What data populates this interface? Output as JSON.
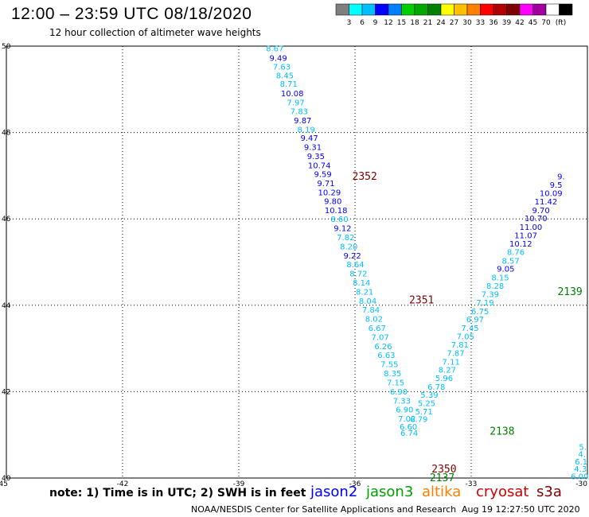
{
  "header": {
    "title": "12:00 – 23:59 UTC 08/18/2020",
    "subtitle": "12 hour collection of altimeter wave heights"
  },
  "legend": {
    "colors": [
      "#7f7f7f",
      "#00ffff",
      "#00bfff",
      "#0000ff",
      "#0080ff",
      "#00d000",
      "#00a800",
      "#008000",
      "#ffff00",
      "#ffc000",
      "#ff8000",
      "#ff0000",
      "#b00000",
      "#800000",
      "#ff00ff",
      "#a000a0",
      "#ffffff",
      "#000000"
    ],
    "labels": [
      "3",
      "6",
      "9",
      "12",
      "15",
      "18",
      "21",
      "24",
      "27",
      "30",
      "33",
      "36",
      "39",
      "42",
      "45",
      "70"
    ],
    "unit": "(ft)"
  },
  "footer": {
    "note": "note: 1) Time is in UTC; 2) SWH is in feet",
    "credit": "NOAA/NESDIS Center for Satellite Applications and Research",
    "timestamp": "Aug 19 12:27:50 UTC 2020",
    "satellites": [
      {
        "name": "jason2",
        "color": "#0000ff"
      },
      {
        "name": "jason3",
        "color": "#00a000"
      },
      {
        "name": "altika",
        "color": "#ff8000"
      },
      {
        "name": "cryosat",
        "color": "#d00000"
      },
      {
        "name": "s3a",
        "color": "#800000"
      }
    ]
  },
  "chart_data": {
    "type": "scatter",
    "xlim": [
      -45,
      -30
    ],
    "ylim": [
      40,
      50
    ],
    "xticks": [
      "-45",
      "-42",
      "-39",
      "-36",
      "-33",
      "-30"
    ],
    "yticks": [
      "40",
      "42",
      "44",
      "46",
      "48",
      "50"
    ],
    "grid": true,
    "tracks": [
      {
        "name": "track-1",
        "points": [
          {
            "x": -38.07,
            "y": 49.95,
            "label": "8.67",
            "color": "#00bfff"
          },
          {
            "x": -37.98,
            "y": 49.73,
            "label": "9.49",
            "color": "#0000ff"
          },
          {
            "x": -37.89,
            "y": 49.53,
            "label": "7.63",
            "color": "#00bfff"
          },
          {
            "x": -37.81,
            "y": 49.33,
            "label": "8.45",
            "color": "#00bfff"
          },
          {
            "x": -37.71,
            "y": 49.13,
            "label": "8.71",
            "color": "#00bfff"
          },
          {
            "x": -37.62,
            "y": 48.91,
            "label": "10.08",
            "color": "#0000ff"
          },
          {
            "x": -37.53,
            "y": 48.7,
            "label": "7.97",
            "color": "#00bfff"
          },
          {
            "x": -37.44,
            "y": 48.5,
            "label": "7.83",
            "color": "#00bfff"
          },
          {
            "x": -37.35,
            "y": 48.29,
            "label": "9.87",
            "color": "#0000ff"
          },
          {
            "x": -37.26,
            "y": 48.08,
            "label": "8.19",
            "color": "#00bfff"
          },
          {
            "x": -37.18,
            "y": 47.88,
            "label": "9.47",
            "color": "#0000ff"
          },
          {
            "x": -37.09,
            "y": 47.67,
            "label": "9.31",
            "color": "#0000ff"
          },
          {
            "x": -37.01,
            "y": 47.46,
            "label": "9.35",
            "color": "#0000ff"
          },
          {
            "x": -36.92,
            "y": 47.25,
            "label": "10.74",
            "color": "#0000ff"
          },
          {
            "x": -36.83,
            "y": 47.04,
            "label": "9.59",
            "color": "#0000ff"
          },
          {
            "x": -36.75,
            "y": 46.83,
            "label": "9.71",
            "color": "#0000ff"
          },
          {
            "x": -36.66,
            "y": 46.62,
            "label": "10.29",
            "color": "#0000ff"
          },
          {
            "x": -36.57,
            "y": 46.42,
            "label": "9.80",
            "color": "#0000ff"
          },
          {
            "x": -36.49,
            "y": 46.21,
            "label": "10.18",
            "color": "#0000ff"
          },
          {
            "x": -36.4,
            "y": 46.0,
            "label": "8.60",
            "color": "#00bfff"
          },
          {
            "x": -36.32,
            "y": 45.79,
            "label": "9.12",
            "color": "#0000ff"
          },
          {
            "x": -36.24,
            "y": 45.58,
            "label": "7.82",
            "color": "#00bfff"
          },
          {
            "x": -36.16,
            "y": 45.37,
            "label": "8.20",
            "color": "#00bfff"
          },
          {
            "x": -36.07,
            "y": 45.16,
            "label": "9.22",
            "color": "#0000ff"
          },
          {
            "x": -35.99,
            "y": 44.95,
            "label": "8.64",
            "color": "#00bfff"
          },
          {
            "x": -35.91,
            "y": 44.74,
            "label": "8.72",
            "color": "#00bfff"
          },
          {
            "x": -35.83,
            "y": 44.53,
            "label": "8.14",
            "color": "#00bfff"
          },
          {
            "x": -35.75,
            "y": 44.32,
            "label": "8.21",
            "color": "#00bfff"
          },
          {
            "x": -35.67,
            "y": 44.11,
            "label": "8.04",
            "color": "#00bfff"
          },
          {
            "x": -35.59,
            "y": 43.9,
            "label": "7.84",
            "color": "#00bfff"
          },
          {
            "x": -35.51,
            "y": 43.69,
            "label": "8.02",
            "color": "#00bfff"
          },
          {
            "x": -35.43,
            "y": 43.48,
            "label": "6.67",
            "color": "#00bfff"
          },
          {
            "x": -35.35,
            "y": 43.27,
            "label": "7.07",
            "color": "#00bfff"
          },
          {
            "x": -35.27,
            "y": 43.06,
            "label": "6.26",
            "color": "#00bfff"
          },
          {
            "x": -35.19,
            "y": 42.85,
            "label": "6.63",
            "color": "#00bfff"
          },
          {
            "x": -35.11,
            "y": 42.64,
            "label": "7.55",
            "color": "#00bfff"
          },
          {
            "x": -35.03,
            "y": 42.43,
            "label": "8.35",
            "color": "#00bfff"
          },
          {
            "x": -34.95,
            "y": 42.22,
            "label": "7.15",
            "color": "#00bfff"
          },
          {
            "x": -34.87,
            "y": 42.01,
            "label": "6.90",
            "color": "#00bfff"
          },
          {
            "x": -34.79,
            "y": 41.8,
            "label": "7.33",
            "color": "#00bfff"
          },
          {
            "x": -34.72,
            "y": 41.59,
            "label": "6.90",
            "color": "#00bfff"
          },
          {
            "x": -34.66,
            "y": 41.38,
            "label": "7.02",
            "color": "#00bfff"
          },
          {
            "x": -34.62,
            "y": 41.2,
            "label": "6.60",
            "color": "#00bfff"
          },
          {
            "x": -34.6,
            "y": 41.05,
            "label": "6.74",
            "color": "#00bfff"
          }
        ]
      },
      {
        "name": "track-2",
        "points": [
          {
            "x": -34.35,
            "y": 41.37,
            "label": "6.79",
            "color": "#00bfff"
          },
          {
            "x": -34.22,
            "y": 41.55,
            "label": "5.71",
            "color": "#00bfff"
          },
          {
            "x": -34.15,
            "y": 41.74,
            "label": "5.25",
            "color": "#00bfff"
          },
          {
            "x": -34.08,
            "y": 41.93,
            "label": "5.39",
            "color": "#00bfff"
          },
          {
            "x": -33.9,
            "y": 42.12,
            "label": "6.78",
            "color": "#00bfff"
          },
          {
            "x": -33.7,
            "y": 42.32,
            "label": "5.96",
            "color": "#00bfff"
          },
          {
            "x": -33.62,
            "y": 42.51,
            "label": "8.27",
            "color": "#00bfff"
          },
          {
            "x": -33.52,
            "y": 42.7,
            "label": "7.11",
            "color": "#00bfff"
          },
          {
            "x": -33.4,
            "y": 42.9,
            "label": "7.87",
            "color": "#00bfff"
          },
          {
            "x": -33.29,
            "y": 43.09,
            "label": "7.81",
            "color": "#00bfff"
          },
          {
            "x": -33.15,
            "y": 43.29,
            "label": "7.05",
            "color": "#00bfff"
          },
          {
            "x": -33.03,
            "y": 43.48,
            "label": "7.45",
            "color": "#00bfff"
          },
          {
            "x": -32.9,
            "y": 43.68,
            "label": "6.97",
            "color": "#00bfff"
          },
          {
            "x": -32.77,
            "y": 43.87,
            "label": "6.75",
            "color": "#00bfff"
          },
          {
            "x": -32.64,
            "y": 44.07,
            "label": "7.19",
            "color": "#00bfff"
          },
          {
            "x": -32.51,
            "y": 44.26,
            "label": "7.39",
            "color": "#00bfff"
          },
          {
            "x": -32.38,
            "y": 44.46,
            "label": "8.28",
            "color": "#00bfff"
          },
          {
            "x": -32.25,
            "y": 44.65,
            "label": "8.15",
            "color": "#00bfff"
          },
          {
            "x": -32.11,
            "y": 44.85,
            "label": "9.05",
            "color": "#0000ff"
          },
          {
            "x": -31.98,
            "y": 45.04,
            "label": "8.57",
            "color": "#00bfff"
          },
          {
            "x": -31.85,
            "y": 45.24,
            "label": "8.76",
            "color": "#00bfff"
          },
          {
            "x": -31.72,
            "y": 45.43,
            "label": "10.12",
            "color": "#0000ff"
          },
          {
            "x": -31.59,
            "y": 45.63,
            "label": "11.07",
            "color": "#0000ff"
          },
          {
            "x": -31.46,
            "y": 45.82,
            "label": "11.00",
            "color": "#0000ff"
          },
          {
            "x": -31.33,
            "y": 46.02,
            "label": "10.70",
            "color": "#0000ff"
          },
          {
            "x": -31.2,
            "y": 46.21,
            "label": "9.70",
            "color": "#0000ff"
          },
          {
            "x": -31.07,
            "y": 46.41,
            "label": "11.42",
            "color": "#0000ff"
          },
          {
            "x": -30.94,
            "y": 46.6,
            "label": "10.09",
            "color": "#0000ff"
          },
          {
            "x": -30.81,
            "y": 46.8,
            "label": "9.5",
            "color": "#0000ff"
          },
          {
            "x": -30.68,
            "y": 46.99,
            "label": "9.",
            "color": "#0000ff"
          }
        ]
      },
      {
        "name": "track-3",
        "points": [
          {
            "x": -30.2,
            "y": 40.05,
            "label": "6.00",
            "color": "#00bfff"
          },
          {
            "x": -30.18,
            "y": 40.22,
            "label": "4.3",
            "color": "#00bfff"
          },
          {
            "x": -30.16,
            "y": 40.39,
            "label": "6.1",
            "color": "#00bfff"
          },
          {
            "x": -30.14,
            "y": 40.56,
            "label": "4.",
            "color": "#00bfff"
          },
          {
            "x": -30.12,
            "y": 40.73,
            "label": "5.",
            "color": "#00bfff"
          }
        ]
      }
    ],
    "pass_labels": [
      {
        "text": "2352",
        "x": -35.75,
        "y": 47.0,
        "color": "#800000"
      },
      {
        "text": "2351",
        "x": -34.28,
        "y": 44.13,
        "color": "#800000"
      },
      {
        "text": "2139",
        "x": -30.45,
        "y": 44.33,
        "color": "#008000"
      },
      {
        "text": "2138",
        "x": -32.2,
        "y": 41.1,
        "color": "#008000"
      },
      {
        "text": "2350",
        "x": -33.7,
        "y": 40.22,
        "color": "#800000"
      },
      {
        "text": "2137",
        "x": -33.75,
        "y": 40.02,
        "color": "#008000"
      }
    ]
  }
}
